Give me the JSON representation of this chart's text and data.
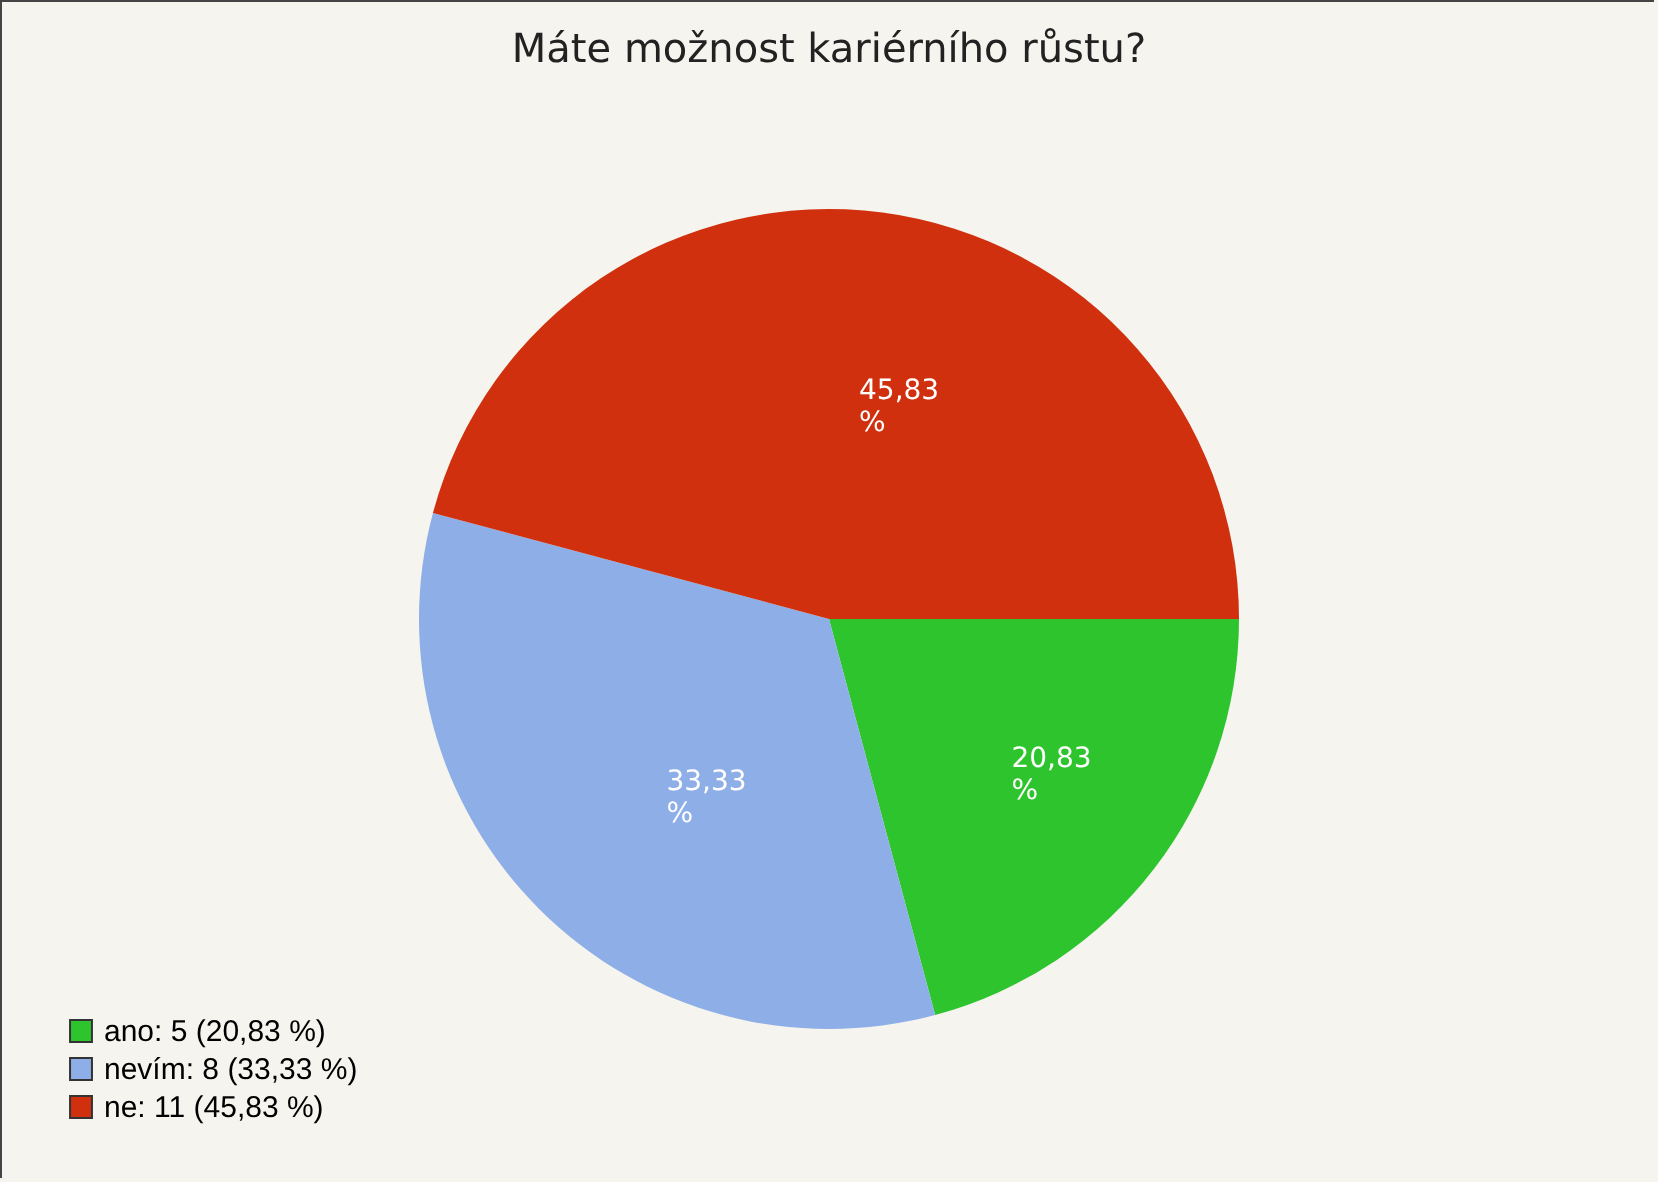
{
  "chart_data": {
    "type": "pie",
    "title": "Máte možnost kariérního růstu?",
    "categories": [
      "ano: 5 (20,83 %)",
      "nevím: 8 (33,33 %)",
      "ne: 11 (45,83 %)"
    ],
    "values": [
      20.83,
      33.33,
      45.83
    ],
    "colors": [
      "#2ec42e",
      "#8eaee8",
      "#d0300e"
    ],
    "value_labels": [
      "20,83 %",
      "33,33 %",
      "45,83 %"
    ],
    "legend": "bottom left"
  }
}
